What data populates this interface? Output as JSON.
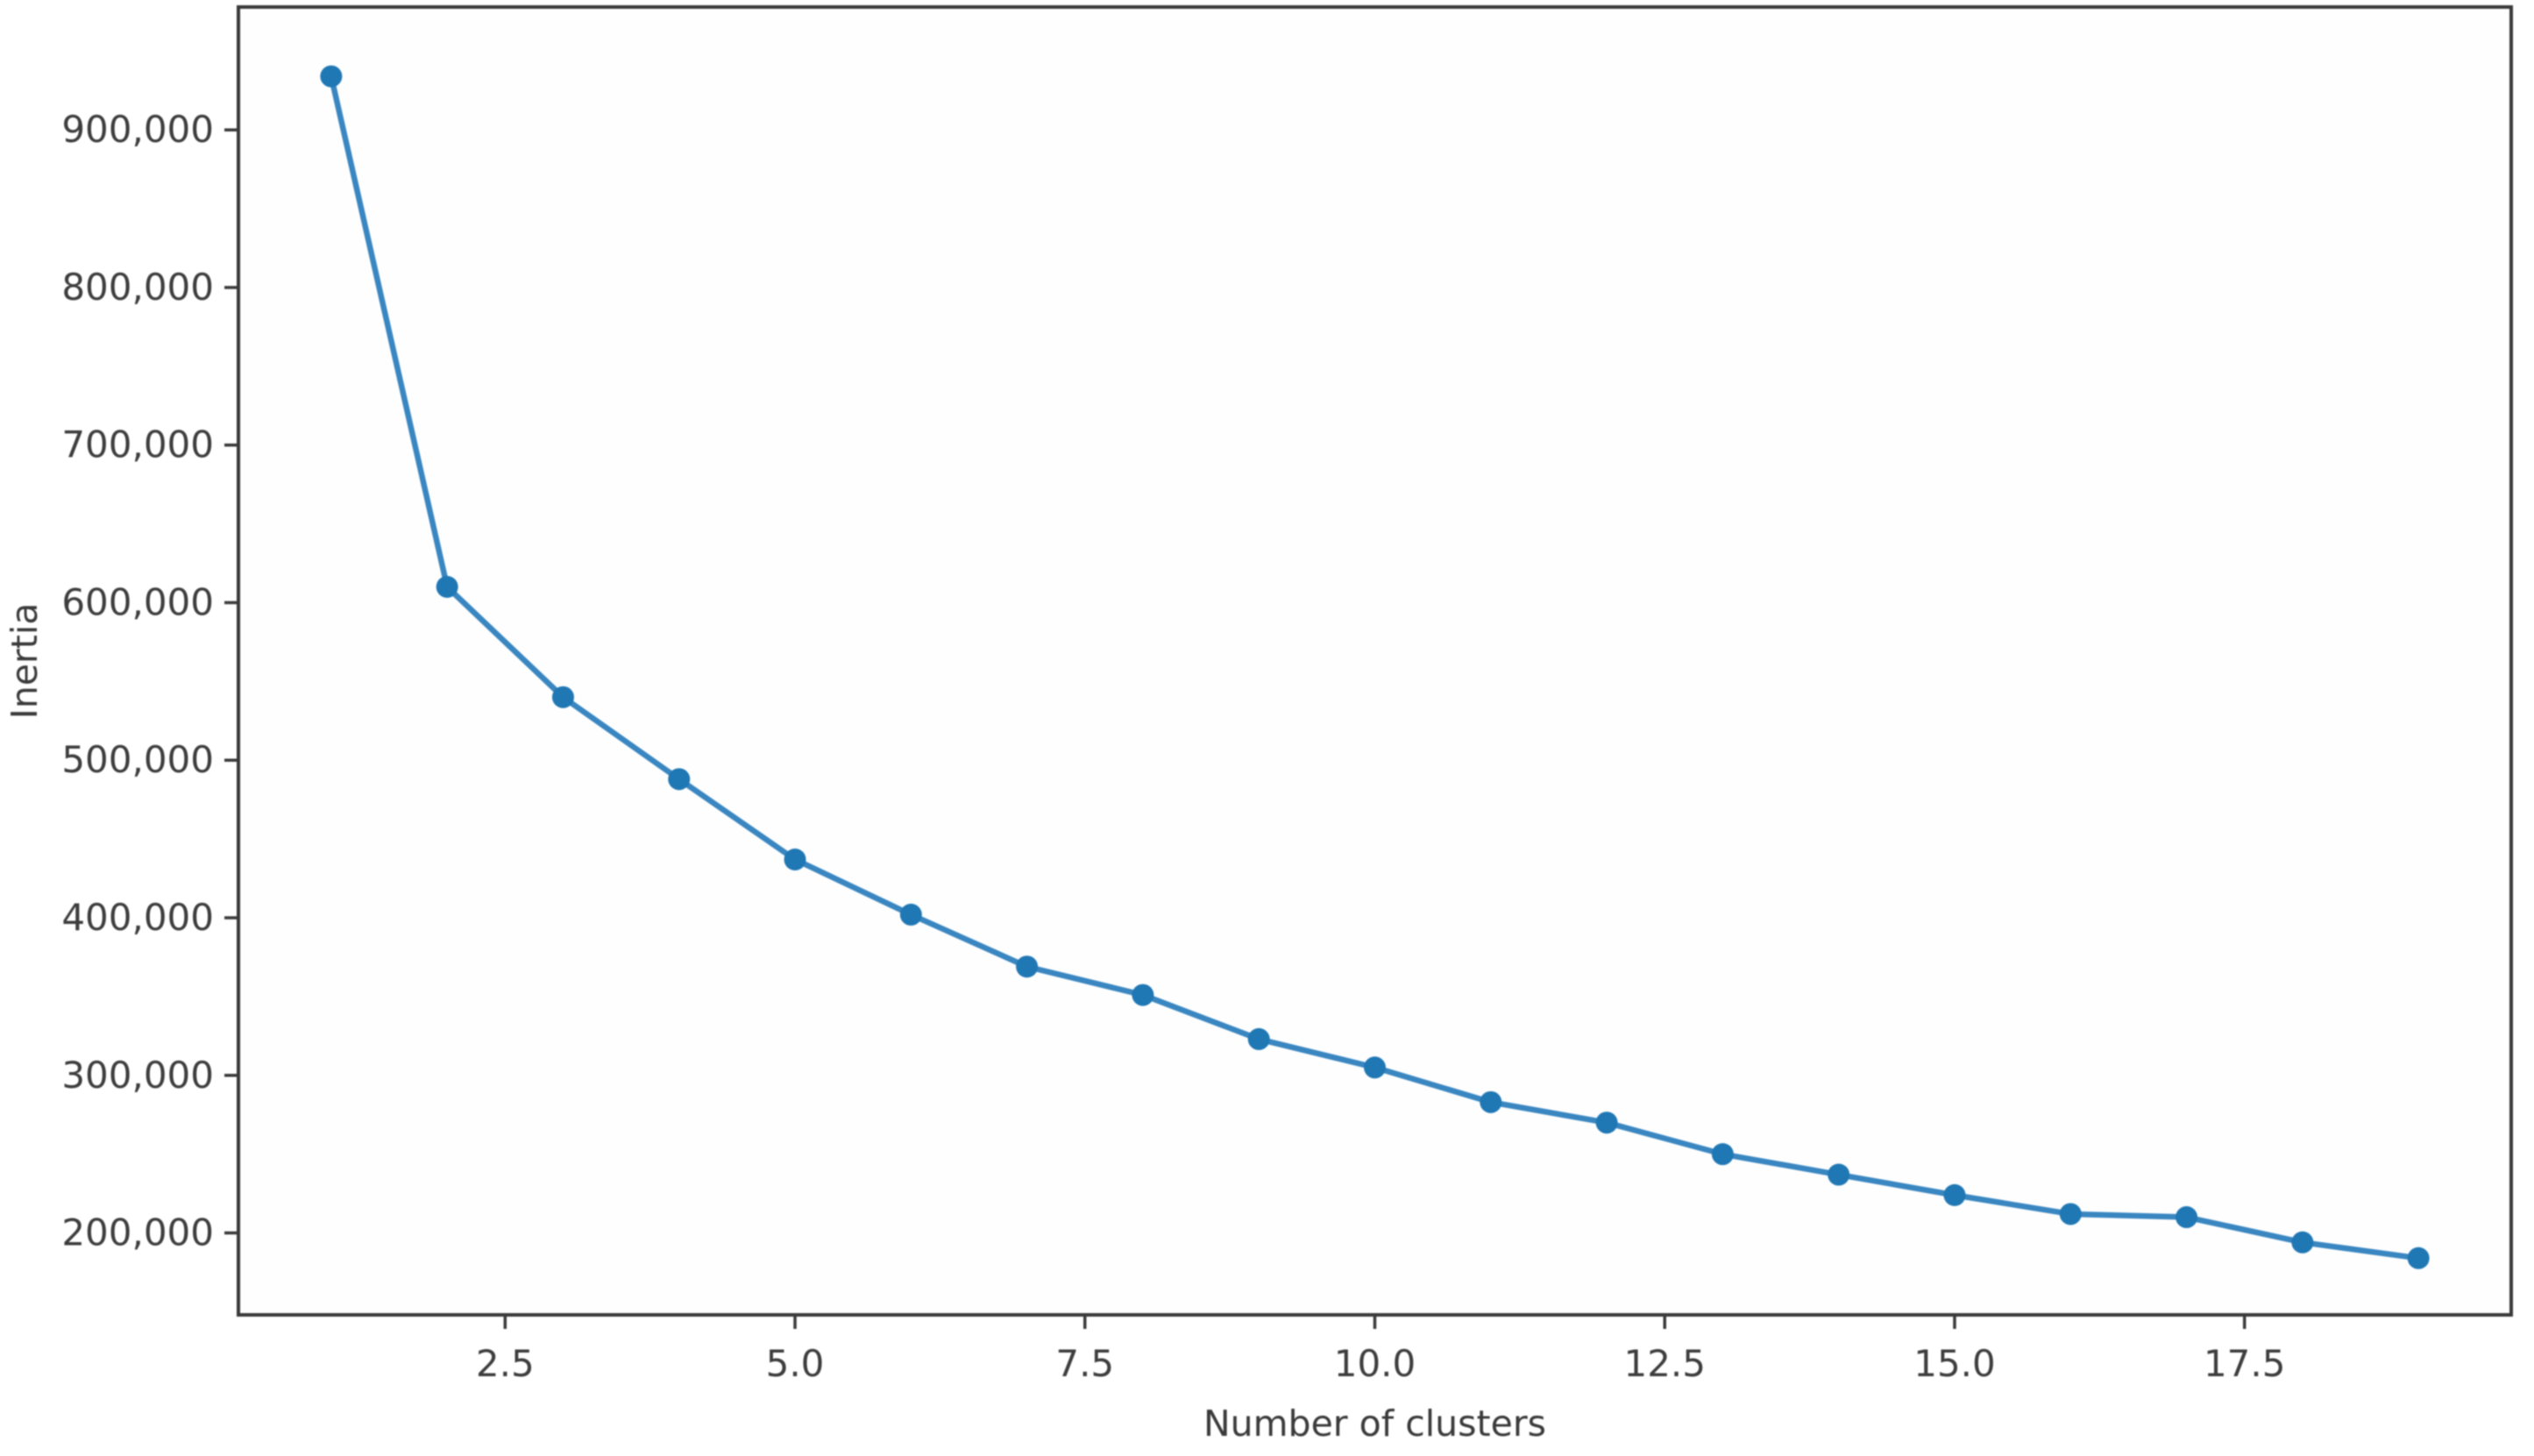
{
  "figure": {
    "background_color": "#ffffff",
    "plot_background_color": "#fefefe",
    "spine_color": "#3a3a3a",
    "tick_color": "#3a3a3a",
    "tick_label_color": "#3d3d3d",
    "line_color": "#2e7fbe",
    "marker_color": "#1f77b4"
  },
  "chart_data": {
    "type": "line",
    "title": "",
    "xlabel": "Number of clusters",
    "ylabel": "Inertia",
    "marker": "circle",
    "grid": false,
    "legend_position": "none",
    "x": [
      1,
      2,
      3,
      4,
      5,
      6,
      7,
      8,
      9,
      10,
      11,
      12,
      13,
      14,
      15,
      16,
      17,
      18,
      19
    ],
    "values": [
      934000,
      610000,
      540000,
      488000,
      437000,
      402000,
      369000,
      351000,
      323000,
      305000,
      283000,
      270000,
      250000,
      237000,
      224000,
      212000,
      210000,
      194000,
      184000
    ],
    "series": [
      {
        "name": "Inertia",
        "values": [
          934000,
          610000,
          540000,
          488000,
          437000,
          402000,
          369000,
          351000,
          323000,
          305000,
          283000,
          270000,
          250000,
          237000,
          224000,
          212000,
          210000,
          194000,
          184000
        ]
      }
    ],
    "xticks": {
      "values": [
        2.5,
        5.0,
        7.5,
        10.0,
        12.5,
        15.0,
        17.5
      ],
      "labels": [
        "2.5",
        "5.0",
        "7.5",
        "10.0",
        "12.5",
        "15.0",
        "17.5"
      ]
    },
    "yticks": {
      "values": [
        200000,
        300000,
        400000,
        500000,
        600000,
        700000,
        800000,
        900000
      ],
      "labels": [
        "200,000",
        "300,000",
        "400,000",
        "500,000",
        "600,000",
        "700,000",
        "800,000",
        "900,000"
      ]
    },
    "xlim": [
      0.2,
      19.8
    ],
    "ylim": [
      148000,
      978000
    ]
  }
}
